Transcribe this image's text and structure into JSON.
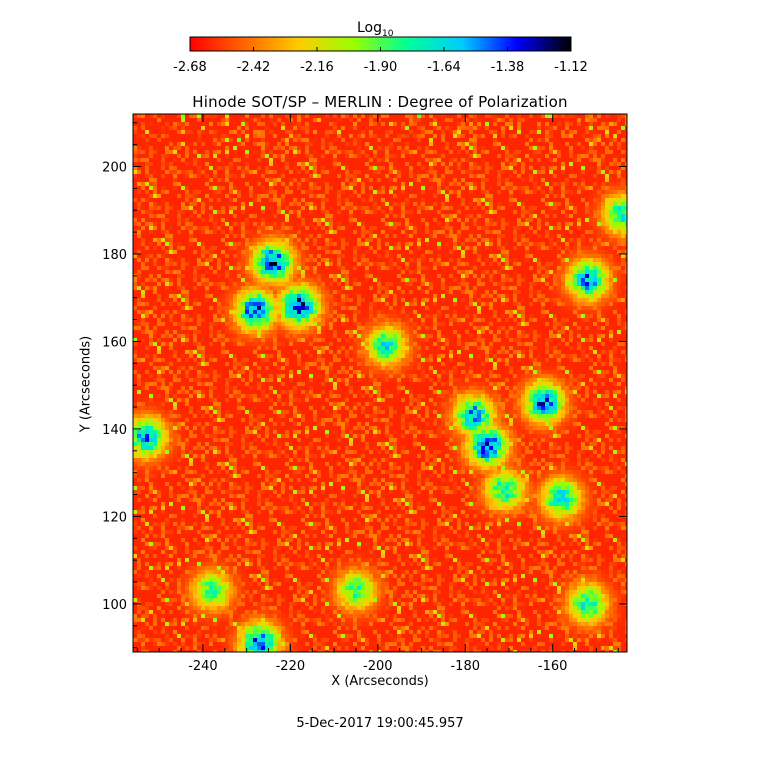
{
  "chart_data": {
    "type": "heatmap",
    "title": "Hinode SOT/SP – MERLIN : Degree of Polarization",
    "xlabel": "X (Arcseconds)",
    "ylabel": "Y (Arcseconds)",
    "xlim": [
      -256,
      -143
    ],
    "ylim": [
      89,
      212
    ],
    "x_ticks": [
      -240,
      -220,
      -200,
      -180,
      -160
    ],
    "y_ticks": [
      100,
      120,
      140,
      160,
      180,
      200
    ],
    "colorbar": {
      "title_base": "Log",
      "title_sub": "10",
      "range": [
        -2.68,
        -1.12
      ],
      "ticks": [
        "-2.68",
        "-2.42",
        "-2.16",
        "-1.90",
        "-1.64",
        "-1.38",
        "-1.12"
      ],
      "colormap": [
        "#ff0000",
        "#ff6600",
        "#ffcc00",
        "#99ff00",
        "#00ff99",
        "#00ccff",
        "#0000ff",
        "#000000"
      ]
    },
    "field": {
      "background_value": -2.6,
      "high_polarization_regions": [
        {
          "x": -224,
          "y": 178,
          "peak": -1.3
        },
        {
          "x": -228,
          "y": 167,
          "peak": -1.35
        },
        {
          "x": -218,
          "y": 168,
          "peak": -1.3
        },
        {
          "x": -175,
          "y": 136,
          "peak": -1.3
        },
        {
          "x": -162,
          "y": 146,
          "peak": -1.4
        },
        {
          "x": -152,
          "y": 174,
          "peak": -1.5
        },
        {
          "x": -178,
          "y": 143,
          "peak": -1.5
        },
        {
          "x": -253,
          "y": 138,
          "peak": -1.5
        },
        {
          "x": -158,
          "y": 124,
          "peak": -1.6
        },
        {
          "x": -227,
          "y": 91,
          "peak": -1.4
        },
        {
          "x": -171,
          "y": 126,
          "peak": -1.7
        },
        {
          "x": -198,
          "y": 159,
          "peak": -1.7
        },
        {
          "x": -152,
          "y": 100,
          "peak": -1.7
        },
        {
          "x": -205,
          "y": 103,
          "peak": -1.8
        },
        {
          "x": -238,
          "y": 103,
          "peak": -1.8
        },
        {
          "x": -144,
          "y": 189,
          "peak": -1.7
        }
      ]
    }
  },
  "timestamp": "5-Dec-2017 19:00:45.957"
}
